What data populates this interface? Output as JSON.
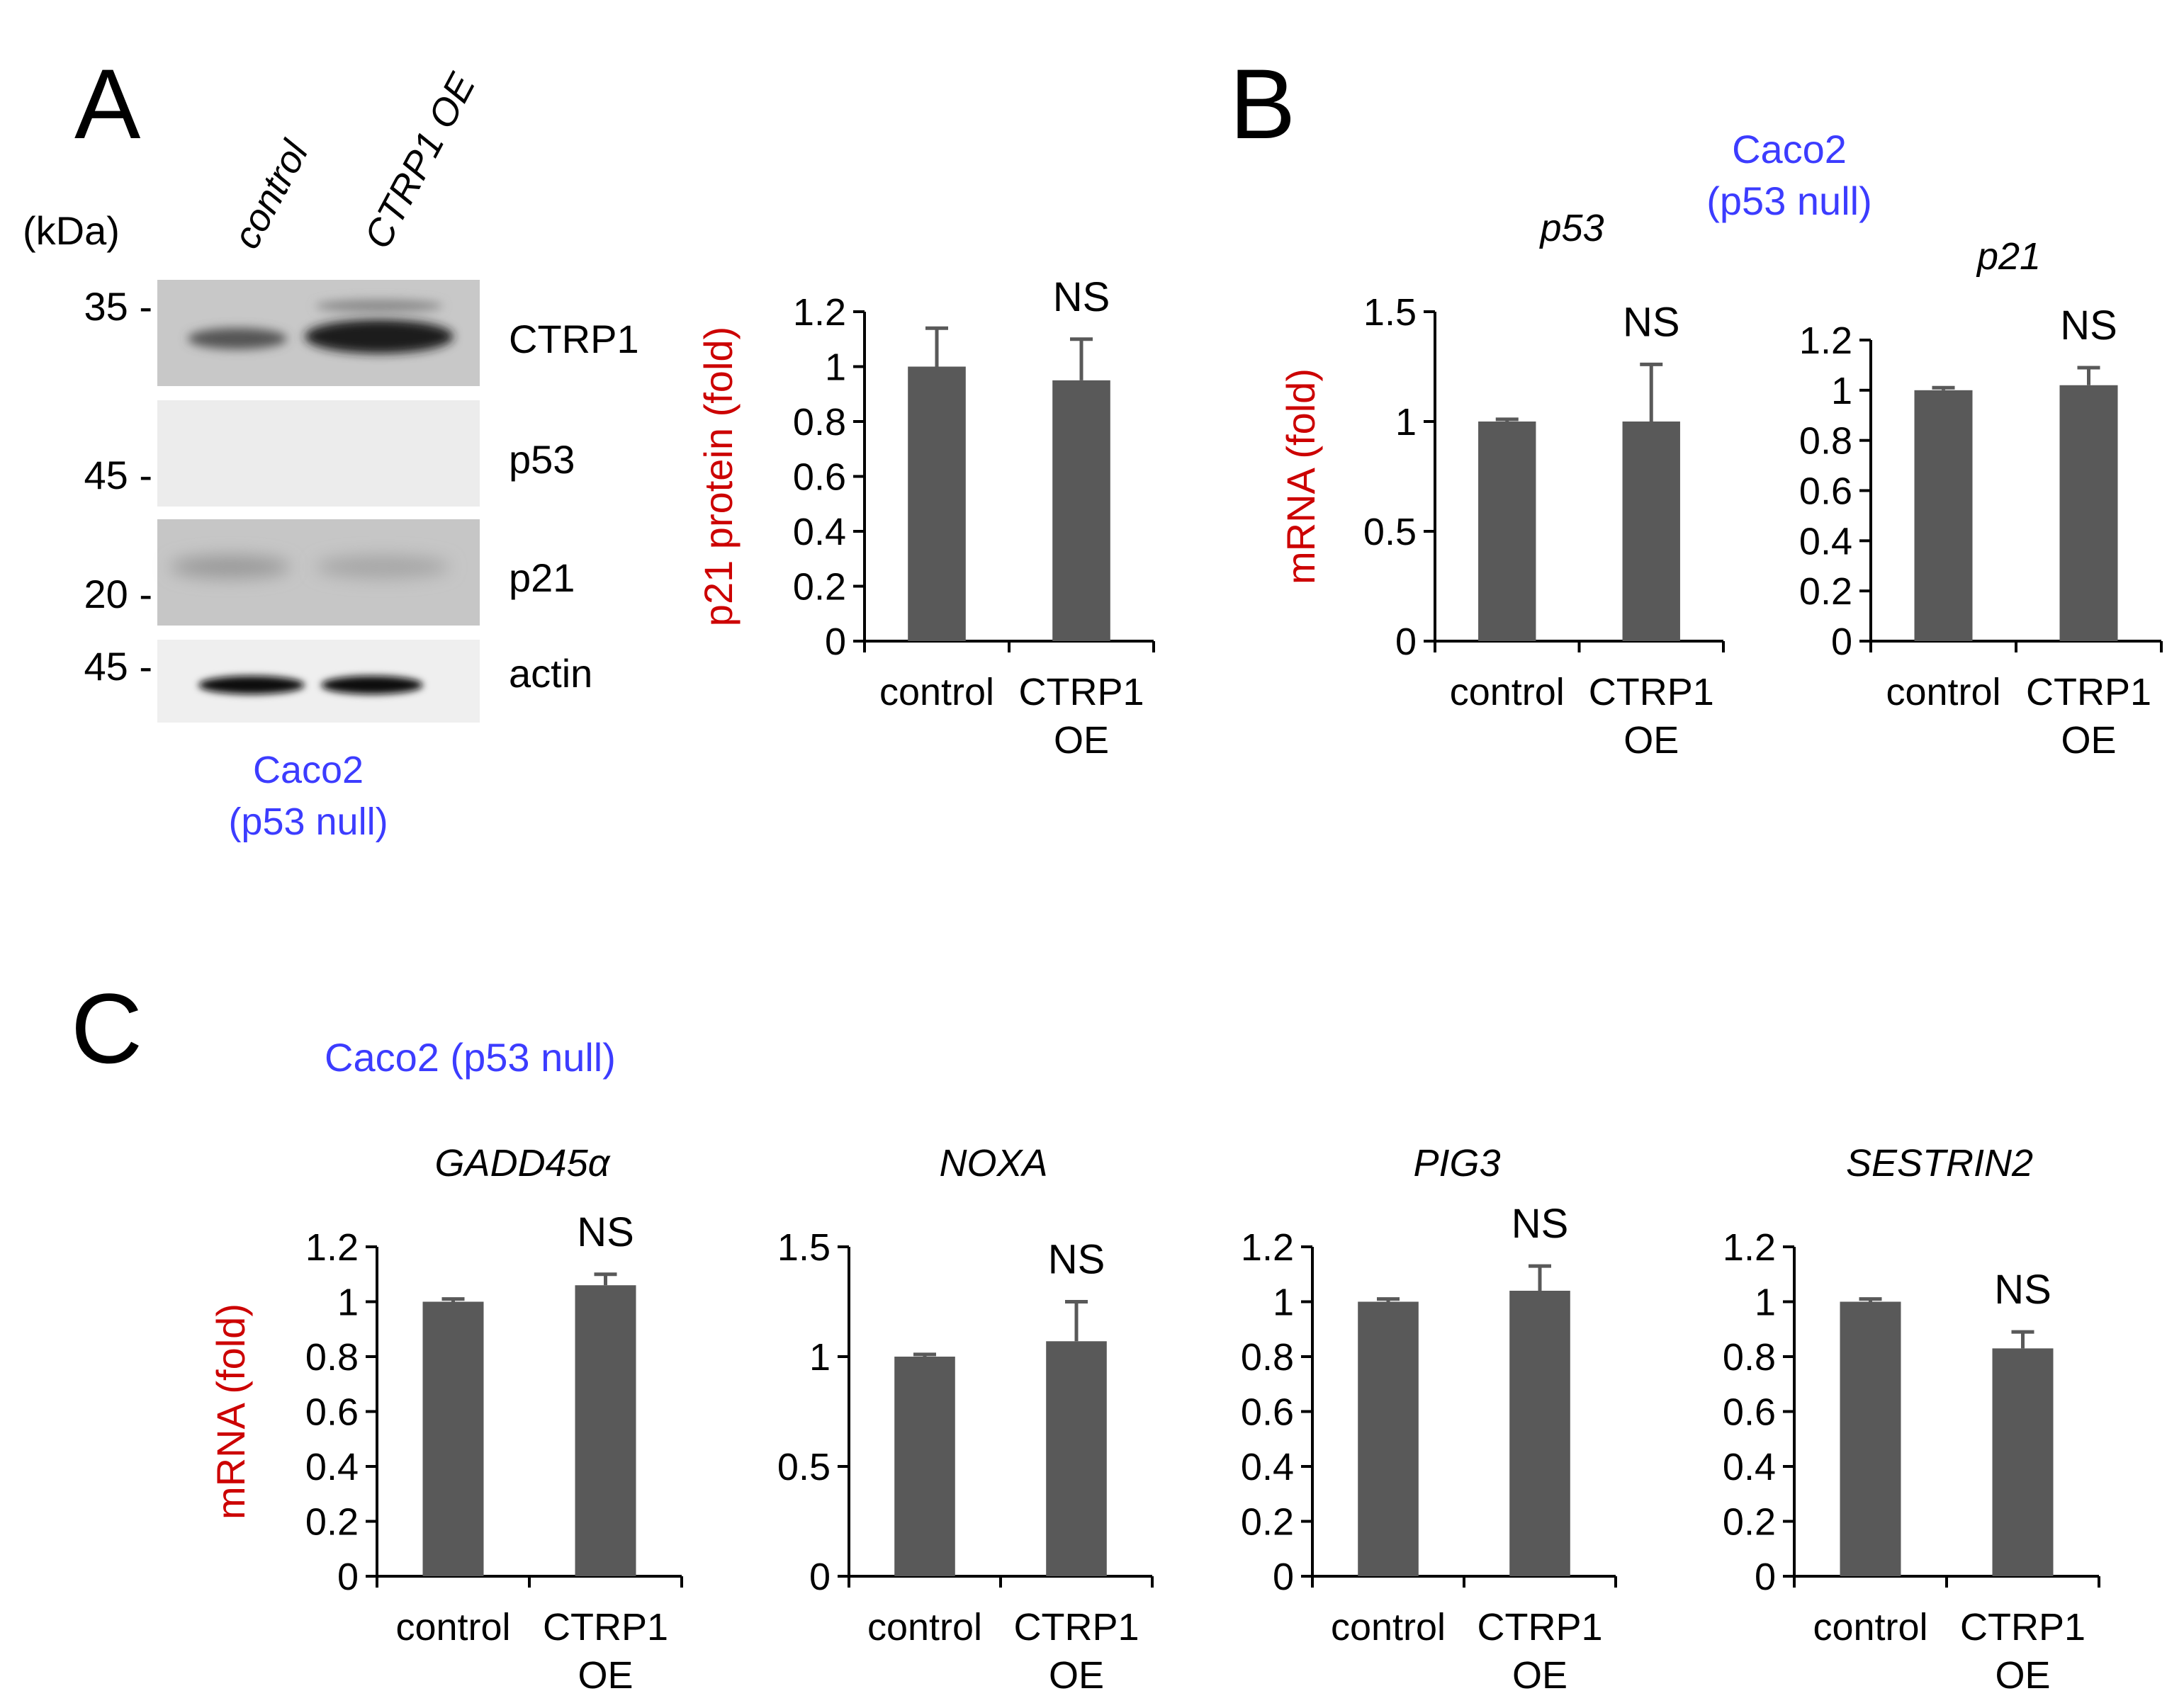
{
  "panels": {
    "A": {
      "letter": "A",
      "kda_label": "(kDa)",
      "lane_labels": [
        "control",
        "CTRP1 OE"
      ],
      "markers": [
        {
          "label": "35 -"
        },
        {
          "label": "45 -"
        },
        {
          "label": "20 -"
        },
        {
          "label": "45 -"
        }
      ],
      "bands": [
        {
          "label": "CTRP1"
        },
        {
          "label": "p53"
        },
        {
          "label": "p21"
        },
        {
          "label": "actin"
        }
      ],
      "cell_line": [
        "Caco2",
        "(p53 null)"
      ]
    },
    "B": {
      "letter": "B",
      "cell_line": [
        "Caco2",
        "(p53 null)"
      ]
    },
    "C": {
      "letter": "C",
      "cell_line": "Caco2 (p53 null)"
    }
  },
  "colors": {
    "bar": "#595959",
    "axis": "#000000",
    "ylabel": "#cc0000",
    "cell_line": "#3c3cff"
  },
  "chart_data": [
    {
      "id": "p21-protein",
      "type": "bar",
      "title": "",
      "categories": [
        [
          "control"
        ],
        [
          "CTRP1",
          "OE"
        ]
      ],
      "values": [
        1.0,
        0.95
      ],
      "errors": [
        0.14,
        0.15
      ],
      "annotation": "NS",
      "ylabel": "p21 protein (fold)",
      "ylim": [
        0,
        1.2
      ],
      "yticks": [
        "0",
        "0.2",
        "0.4",
        "0.6",
        "0.8",
        "1",
        "1.2"
      ]
    },
    {
      "id": "p53-mrna",
      "type": "bar",
      "title": "p53",
      "categories": [
        [
          "control"
        ],
        [
          "CTRP1",
          "OE"
        ]
      ],
      "values": [
        1.0,
        1.0
      ],
      "errors": [
        0.01,
        0.26
      ],
      "annotation": "NS",
      "ylabel": "mRNA (fold)",
      "ylim": [
        0,
        1.5
      ],
      "yticks": [
        "0",
        "0.5",
        "1",
        "1.5"
      ]
    },
    {
      "id": "p21-mrna",
      "type": "bar",
      "title": "p21",
      "categories": [
        [
          "control"
        ],
        [
          "CTRP1",
          "OE"
        ]
      ],
      "values": [
        1.0,
        1.02
      ],
      "errors": [
        0.01,
        0.07
      ],
      "annotation": "NS",
      "ylabel": "",
      "ylim": [
        0,
        1.2
      ],
      "yticks": [
        "0",
        "0.2",
        "0.4",
        "0.6",
        "0.8",
        "1",
        "1.2"
      ]
    },
    {
      "id": "gadd45a-mrna",
      "type": "bar",
      "title": "GADD45α",
      "categories": [
        [
          "control"
        ],
        [
          "CTRP1",
          "OE"
        ]
      ],
      "values": [
        1.0,
        1.06
      ],
      "errors": [
        0.01,
        0.04
      ],
      "annotation": "NS",
      "ylabel": "mRNA (fold)",
      "ylim": [
        0,
        1.2
      ],
      "yticks": [
        "0",
        "0.2",
        "0.4",
        "0.6",
        "0.8",
        "1",
        "1.2"
      ]
    },
    {
      "id": "noxa-mrna",
      "type": "bar",
      "title": "NOXA",
      "categories": [
        [
          "control"
        ],
        [
          "CTRP1",
          "OE"
        ]
      ],
      "values": [
        1.0,
        1.07
      ],
      "errors": [
        0.01,
        0.18
      ],
      "annotation": "NS",
      "ylabel": "",
      "ylim": [
        0,
        1.5
      ],
      "yticks": [
        "0",
        "0.5",
        "1",
        "1.5"
      ]
    },
    {
      "id": "pig3-mrna",
      "type": "bar",
      "title": "PIG3",
      "categories": [
        [
          "control"
        ],
        [
          "CTRP1",
          "OE"
        ]
      ],
      "values": [
        1.0,
        1.04
      ],
      "errors": [
        0.01,
        0.09
      ],
      "annotation": "NS",
      "ylabel": "",
      "ylim": [
        0,
        1.2
      ],
      "yticks": [
        "0",
        "0.2",
        "0.4",
        "0.6",
        "0.8",
        "1",
        "1.2"
      ]
    },
    {
      "id": "sestrin2-mrna",
      "type": "bar",
      "title": "SESTRIN2",
      "categories": [
        [
          "control"
        ],
        [
          "CTRP1",
          "OE"
        ]
      ],
      "values": [
        1.0,
        0.83
      ],
      "errors": [
        0.01,
        0.06
      ],
      "annotation": "NS",
      "ylabel": "",
      "ylim": [
        0,
        1.2
      ],
      "yticks": [
        "0",
        "0.2",
        "0.4",
        "0.6",
        "0.8",
        "1",
        "1.2"
      ]
    }
  ]
}
